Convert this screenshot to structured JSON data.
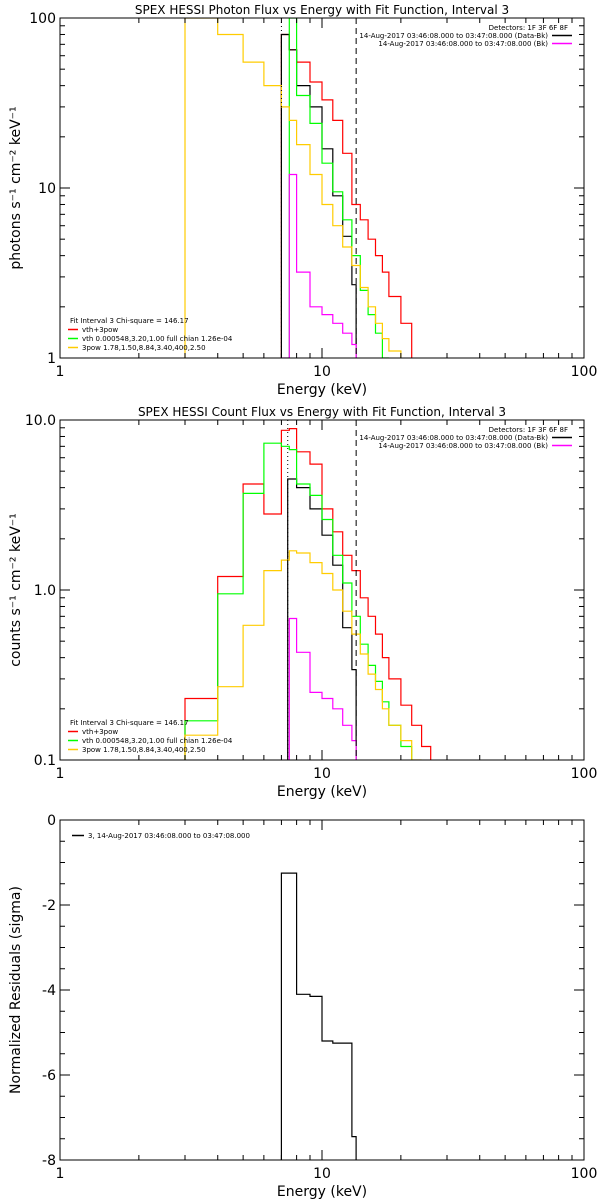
{
  "chart_data": [
    {
      "type": "line",
      "title": "SPEX HESSI Photon Flux vs Energy with Fit Function, Interval 3",
      "xlabel": "Energy (keV)",
      "ylabel": "photons s⁻¹ cm⁻² keV⁻¹",
      "xscale": "log",
      "yscale": "log",
      "xlim": [
        1,
        100
      ],
      "ylim": [
        1,
        100
      ],
      "xticks": [
        {
          "v": 1,
          "label": "1"
        },
        {
          "v": 10,
          "label": "10"
        },
        {
          "v": 100,
          "label": "100"
        }
      ],
      "yticks": [
        {
          "v": 1,
          "label": "1"
        },
        {
          "v": 10,
          "label": "10"
        },
        {
          "v": 100,
          "label": "100"
        }
      ],
      "info_top": [
        {
          "text": "Detectors: 1F 3F 6F 8F",
          "color": ""
        },
        {
          "text": "14-Aug-2017 03:46:08.000 to 03:47:08.000 (Data-Bk)",
          "color": "#000000"
        },
        {
          "text": "14-Aug-2017 03:46:08.000 to 03:47:08.000 (Bk)",
          "color": "#ff00ff"
        }
      ],
      "info_bottom": [
        {
          "text": "Fit Interval 3   Chi-square = 146.17",
          "color": ""
        },
        {
          "text": "vth+3pow",
          "color": "#ff0000"
        },
        {
          "text": "vth 0.000548,3.20,1.00   full chian 1.26e-04",
          "color": "#00ff00"
        },
        {
          "text": "3pow 1.78,1.50,8.84,3.40,400,2.50",
          "color": "#ffcc00"
        }
      ],
      "vlines": [
        {
          "x": 7.0,
          "style": "dotted"
        },
        {
          "x": 13.5,
          "style": "dashed"
        }
      ],
      "series": [
        {
          "color": "#ff0000",
          "bins": [
            [
              7.0,
              7.5,
              80
            ],
            [
              7.5,
              8.0,
              65
            ],
            [
              8.0,
              9.0,
              55
            ],
            [
              9.0,
              10.0,
              42
            ],
            [
              10.0,
              11.0,
              33
            ],
            [
              11.0,
              12.0,
              25
            ],
            [
              12.0,
              13.0,
              16
            ],
            [
              13.0,
              14.0,
              8
            ],
            [
              14.0,
              15.0,
              6.5
            ],
            [
              15.0,
              16.0,
              5
            ],
            [
              16.0,
              17.0,
              4
            ],
            [
              17.0,
              18.0,
              3.2
            ],
            [
              18.0,
              20.0,
              2.3
            ],
            [
              20.0,
              22.0,
              1.6
            ]
          ]
        },
        {
          "color": "#000000",
          "bins": [
            [
              7.0,
              7.5,
              80
            ],
            [
              7.5,
              8.0,
              65
            ],
            [
              8.0,
              9.0,
              40
            ],
            [
              9.0,
              10.0,
              30
            ],
            [
              10.0,
              11.0,
              17
            ],
            [
              11.0,
              12.0,
              9
            ],
            [
              12.0,
              13.0,
              5.2
            ],
            [
              13.0,
              13.5,
              2.7
            ]
          ]
        },
        {
          "color": "#00ff00",
          "bins": [
            [
              7.5,
              8.0,
              100
            ],
            [
              8.0,
              9.0,
              35
            ],
            [
              9.0,
              10.0,
              24
            ],
            [
              10.0,
              11.0,
              14
            ],
            [
              11.0,
              12.0,
              9.5
            ],
            [
              12.0,
              13.0,
              6.5
            ],
            [
              13.0,
              14.0,
              4
            ],
            [
              14.0,
              15.0,
              2.5
            ],
            [
              15.0,
              16.0,
              1.8
            ],
            [
              16.0,
              17.0,
              1.4
            ],
            [
              17.0,
              18.0,
              1.0
            ]
          ]
        },
        {
          "color": "#ffcc00",
          "bins": [
            [
              3.0,
              4.0,
              100
            ],
            [
              4.0,
              5.0,
              80
            ],
            [
              5.0,
              6.0,
              55
            ],
            [
              6.0,
              7.0,
              40
            ],
            [
              7.0,
              7.5,
              30
            ],
            [
              7.5,
              8.0,
              25
            ],
            [
              8.0,
              9.0,
              18
            ],
            [
              9.0,
              10.0,
              12
            ],
            [
              10.0,
              11.0,
              8
            ],
            [
              11.0,
              12.0,
              6
            ],
            [
              12.0,
              13.0,
              4.5
            ],
            [
              13.0,
              14.0,
              3.5
            ],
            [
              14.0,
              15.0,
              2.6
            ],
            [
              15.0,
              16.0,
              2
            ],
            [
              16.0,
              17.0,
              1.6
            ],
            [
              17.0,
              18.0,
              1.3
            ],
            [
              18.0,
              20.0,
              1.1
            ]
          ]
        },
        {
          "color": "#ff00ff",
          "bins": [
            [
              7.0,
              7.5,
              1.0
            ],
            [
              7.5,
              8.0,
              12
            ],
            [
              8.0,
              9.0,
              3.2
            ],
            [
              9.0,
              10.0,
              2.0
            ],
            [
              10.0,
              11.0,
              1.8
            ],
            [
              11.0,
              12.0,
              1.6
            ],
            [
              12.0,
              13.0,
              1.4
            ],
            [
              13.0,
              13.5,
              1.2
            ]
          ]
        }
      ]
    },
    {
      "type": "line",
      "title": "SPEX HESSI Count Flux vs Energy with Fit Function, Interval 3",
      "xlabel": "Energy (keV)",
      "ylabel": "counts s⁻¹ cm⁻² keV⁻¹",
      "xscale": "log",
      "yscale": "log",
      "xlim": [
        1,
        100
      ],
      "ylim": [
        0.1,
        10
      ],
      "xticks": [
        {
          "v": 1,
          "label": "1"
        },
        {
          "v": 10,
          "label": "10"
        },
        {
          "v": 100,
          "label": "100"
        }
      ],
      "yticks": [
        {
          "v": 0.1,
          "label": "0.1"
        },
        {
          "v": 1,
          "label": "1.0"
        },
        {
          "v": 10,
          "label": "10.0"
        }
      ],
      "info_top": [
        {
          "text": "Detectors: 1F 3F 6F 8F",
          "color": ""
        },
        {
          "text": "14-Aug-2017 03:46:08.000 to 03:47:08.000 (Data-Bk)",
          "color": "#000000"
        },
        {
          "text": "14-Aug-2017 03:46:08.000 to 03:47:08.000 (Bk)",
          "color": "#ff00ff"
        }
      ],
      "info_bottom": [
        {
          "text": "Fit Interval 3   Chi-square = 146.17",
          "color": ""
        },
        {
          "text": "vth+3pow",
          "color": "#ff0000"
        },
        {
          "text": "vth 0.000548,3.20,1.00   full chian 1.26e-04",
          "color": "#00ff00"
        },
        {
          "text": "3pow 1.78,1.50,8.84,3.40,400,2.50",
          "color": "#ffcc00"
        }
      ],
      "vlines": [
        {
          "x": 7.4,
          "style": "dotted"
        },
        {
          "x": 13.5,
          "style": "dashed"
        }
      ],
      "series": [
        {
          "color": "#ff0000",
          "bins": [
            [
              3.0,
              4.0,
              0.23
            ],
            [
              4.0,
              5.0,
              1.2
            ],
            [
              5.0,
              6.0,
              4.2
            ],
            [
              6.0,
              7.0,
              2.8
            ],
            [
              7.0,
              7.5,
              8.7
            ],
            [
              7.5,
              8.0,
              8.9
            ],
            [
              8.0,
              9.0,
              6.5
            ],
            [
              9.0,
              10.0,
              5.5
            ],
            [
              10.0,
              11.0,
              3.0
            ],
            [
              11.0,
              12.0,
              2.2
            ],
            [
              12.0,
              13.0,
              1.6
            ],
            [
              13.0,
              14.0,
              1.3
            ],
            [
              14.0,
              15.0,
              0.9
            ],
            [
              15.0,
              16.0,
              0.7
            ],
            [
              16.0,
              17.0,
              0.55
            ],
            [
              17.0,
              18.0,
              0.4
            ],
            [
              18.0,
              20.0,
              0.3
            ],
            [
              20.0,
              22.0,
              0.21
            ],
            [
              22.0,
              24.0,
              0.16
            ],
            [
              24.0,
              26.0,
              0.12
            ]
          ]
        },
        {
          "color": "#000000",
          "bins": [
            [
              7.4,
              8.0,
              4.5
            ],
            [
              8.0,
              9.0,
              4.0
            ],
            [
              9.0,
              10.0,
              3.0
            ],
            [
              10.0,
              11.0,
              2.1
            ],
            [
              11.0,
              12.0,
              1.4
            ],
            [
              12.0,
              13.0,
              0.6
            ],
            [
              13.0,
              13.5,
              0.34
            ]
          ]
        },
        {
          "color": "#00ff00",
          "bins": [
            [
              3.0,
              4.0,
              0.17
            ],
            [
              4.0,
              5.0,
              0.95
            ],
            [
              5.0,
              6.0,
              3.7
            ],
            [
              6.0,
              7.0,
              7.3
            ],
            [
              7.0,
              7.5,
              7.0
            ],
            [
              7.5,
              8.0,
              6.7
            ],
            [
              8.0,
              9.0,
              4.2
            ],
            [
              9.0,
              10.0,
              3.6
            ],
            [
              10.0,
              11.0,
              2.6
            ],
            [
              11.0,
              12.0,
              1.6
            ],
            [
              12.0,
              13.0,
              1.1
            ],
            [
              13.0,
              14.0,
              0.7
            ],
            [
              14.0,
              15.0,
              0.48
            ],
            [
              15.0,
              16.0,
              0.36
            ],
            [
              16.0,
              17.0,
              0.29
            ],
            [
              17.0,
              18.0,
              0.22
            ],
            [
              18.0,
              20.0,
              0.16
            ],
            [
              20.0,
              22.0,
              0.12
            ]
          ]
        },
        {
          "color": "#ffcc00",
          "bins": [
            [
              3.0,
              4.0,
              0.14
            ],
            [
              4.0,
              5.0,
              0.27
            ],
            [
              5.0,
              6.0,
              0.62
            ],
            [
              6.0,
              7.0,
              1.3
            ],
            [
              7.0,
              7.5,
              1.5
            ],
            [
              7.5,
              8.0,
              1.7
            ],
            [
              8.0,
              9.0,
              1.65
            ],
            [
              9.0,
              10.0,
              1.45
            ],
            [
              10.0,
              11.0,
              1.25
            ],
            [
              11.0,
              12.0,
              1.0
            ],
            [
              12.0,
              13.0,
              0.75
            ],
            [
              13.0,
              14.0,
              0.55
            ],
            [
              14.0,
              15.0,
              0.42
            ],
            [
              15.0,
              16.0,
              0.32
            ],
            [
              16.0,
              17.0,
              0.26
            ],
            [
              17.0,
              18.0,
              0.2
            ],
            [
              18.0,
              20.0,
              0.16
            ],
            [
              20.0,
              22.0,
              0.13
            ],
            [
              22.0,
              24.0,
              0.1
            ]
          ]
        },
        {
          "color": "#ff00ff",
          "bins": [
            [
              7.4,
              7.5,
              0.1
            ],
            [
              7.5,
              8.0,
              0.68
            ],
            [
              8.0,
              9.0,
              0.43
            ],
            [
              9.0,
              10.0,
              0.25
            ],
            [
              10.0,
              11.0,
              0.23
            ],
            [
              11.0,
              12.0,
              0.2
            ],
            [
              12.0,
              13.0,
              0.16
            ],
            [
              13.0,
              13.5,
              0.13
            ]
          ]
        }
      ]
    },
    {
      "type": "line",
      "title": "",
      "xlabel": "Energy (keV)",
      "ylabel": "Normalized Residuals (sigma)",
      "xscale": "log",
      "yscale": "linear",
      "xlim": [
        1,
        100
      ],
      "ylim": [
        -8,
        0
      ],
      "xticks": [
        {
          "v": 1,
          "label": "1"
        },
        {
          "v": 10,
          "label": "10"
        },
        {
          "v": 100,
          "label": "100"
        }
      ],
      "yticks": [
        {
          "v": 0,
          "label": "0"
        },
        {
          "v": -2,
          "label": "-2"
        },
        {
          "v": -4,
          "label": "-4"
        },
        {
          "v": -6,
          "label": "-6"
        },
        {
          "v": -8,
          "label": "-8"
        }
      ],
      "info_top": [],
      "info_bottom": [],
      "legend": {
        "label": "3, 14-Aug-2017 03:46:08.000 to 03:47:08.000",
        "color": "#000000"
      },
      "vlines": [],
      "series": [
        {
          "color": "#000000",
          "bins": [
            [
              7.0,
              7.5,
              -1.25
            ],
            [
              7.5,
              8.0,
              -1.25
            ],
            [
              8.0,
              9.0,
              -4.1
            ],
            [
              9.0,
              10.0,
              -4.15
            ],
            [
              10.0,
              11.0,
              -5.2
            ],
            [
              11.0,
              12.0,
              -5.25
            ],
            [
              12.0,
              13.0,
              -5.25
            ],
            [
              13.0,
              13.5,
              -7.45
            ]
          ]
        }
      ]
    }
  ]
}
